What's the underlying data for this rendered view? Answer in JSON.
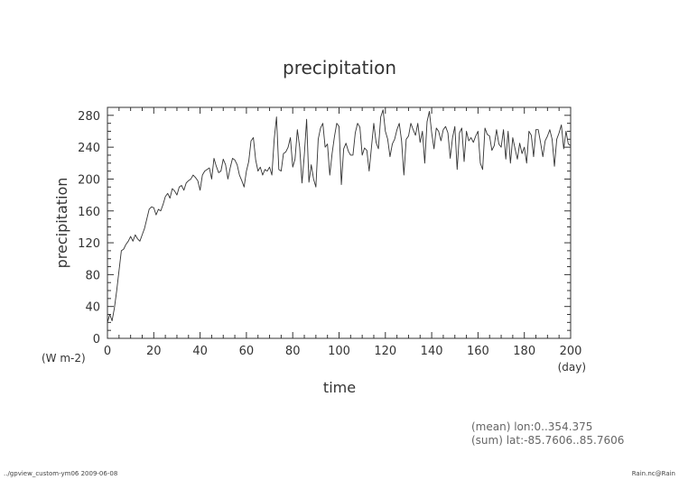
{
  "chart_data": {
    "type": "line",
    "title": "precipitation",
    "xlabel": "time",
    "ylabel": "precipitation",
    "x_unit": "(day)",
    "y_unit": "(W m-2)",
    "xlim": [
      0,
      200
    ],
    "ylim": [
      0,
      290
    ],
    "x_ticks": [
      0,
      20,
      40,
      60,
      80,
      100,
      120,
      140,
      160,
      180,
      200
    ],
    "y_ticks": [
      0,
      40,
      80,
      120,
      160,
      200,
      240,
      280
    ],
    "grid": false,
    "series": [
      {
        "x": [
          0,
          1,
          2,
          3,
          4,
          5,
          6,
          7,
          8,
          9,
          10,
          11,
          12,
          13,
          14,
          15,
          16,
          17,
          18,
          19,
          20,
          21,
          22,
          23,
          24,
          25,
          26,
          27,
          28,
          29,
          30,
          31,
          32,
          33,
          34,
          35,
          36,
          37,
          38,
          39,
          40,
          41,
          42,
          43,
          44,
          45,
          46,
          47,
          48,
          49,
          50,
          51,
          52,
          53,
          54,
          55,
          56,
          57,
          58,
          59,
          60,
          61,
          62,
          63,
          64,
          65,
          66,
          67,
          68,
          69,
          70,
          71,
          72,
          73,
          74,
          75,
          76,
          77,
          78,
          79,
          80,
          81,
          82,
          83,
          84,
          85,
          86,
          87,
          88,
          89,
          90,
          91,
          92,
          93,
          94,
          95,
          96,
          97,
          98,
          99,
          100,
          101,
          102,
          103,
          104,
          105,
          106,
          107,
          108,
          109,
          110,
          111,
          112,
          113,
          114,
          115,
          116,
          117,
          118,
          119,
          120,
          121,
          122,
          123,
          124,
          125,
          126,
          127,
          128,
          129,
          130,
          131,
          132,
          133,
          134,
          135,
          136,
          137,
          138,
          139,
          140,
          141,
          142,
          143,
          144,
          145,
          146,
          147,
          148,
          149,
          150,
          151,
          152,
          153,
          154,
          155,
          156,
          157,
          158,
          159,
          160,
          161,
          162,
          163,
          164,
          165,
          166,
          167,
          168,
          169,
          170,
          171,
          172,
          173,
          174,
          175,
          176,
          177,
          178,
          179,
          180,
          181,
          182,
          183,
          184,
          185,
          186,
          187,
          188,
          189,
          190,
          191,
          192,
          193,
          194,
          195,
          196,
          197,
          198,
          199,
          200
        ],
        "values": [
          20,
          30,
          22,
          38,
          60,
          85,
          110,
          112,
          118,
          122,
          128,
          122,
          130,
          125,
          122,
          130,
          138,
          150,
          162,
          165,
          164,
          155,
          162,
          160,
          168,
          178,
          182,
          176,
          188,
          185,
          180,
          190,
          192,
          186,
          195,
          198,
          200,
          205,
          202,
          198,
          186,
          205,
          210,
          212,
          214,
          200,
          226,
          216,
          208,
          210,
          225,
          218,
          200,
          214,
          226,
          224,
          218,
          205,
          198,
          190,
          210,
          222,
          248,
          252,
          224,
          210,
          215,
          205,
          212,
          210,
          215,
          205,
          250,
          278,
          212,
          210,
          232,
          234,
          240,
          252,
          215,
          225,
          262,
          240,
          195,
          230,
          275,
          196,
          218,
          200,
          190,
          250,
          264,
          270,
          240,
          244,
          205,
          232,
          253,
          270,
          266,
          193,
          238,
          245,
          235,
          230,
          230,
          258,
          270,
          265,
          230,
          239,
          236,
          210,
          240,
          270,
          246,
          238,
          278,
          287,
          260,
          250,
          228,
          244,
          250,
          262,
          270,
          248,
          205,
          250,
          254,
          270,
          262,
          255,
          270,
          246,
          260,
          220,
          272,
          285,
          258,
          238,
          264,
          260,
          248,
          262,
          266,
          258,
          226,
          252,
          266,
          212,
          258,
          264,
          222,
          260,
          248,
          252,
          246,
          254,
          260,
          220,
          212,
          264,
          256,
          254,
          236,
          242,
          262,
          244,
          240,
          262,
          225,
          260,
          220,
          252,
          238,
          225,
          245,
          232,
          240,
          220,
          260,
          255,
          228,
          262,
          262,
          246,
          228,
          248,
          254,
          262,
          250,
          216,
          250,
          258,
          268,
          238,
          260,
          244,
          242
        ],
        "color": "#333333"
      }
    ]
  },
  "info": {
    "line1": "(mean) lon:0..354.375",
    "line2": "(sum) lat:-85.7606..85.7606"
  },
  "footer": {
    "left": "../gpview_custom-ym06  2009-06-08",
    "right": "Rain.nc@Rain"
  }
}
